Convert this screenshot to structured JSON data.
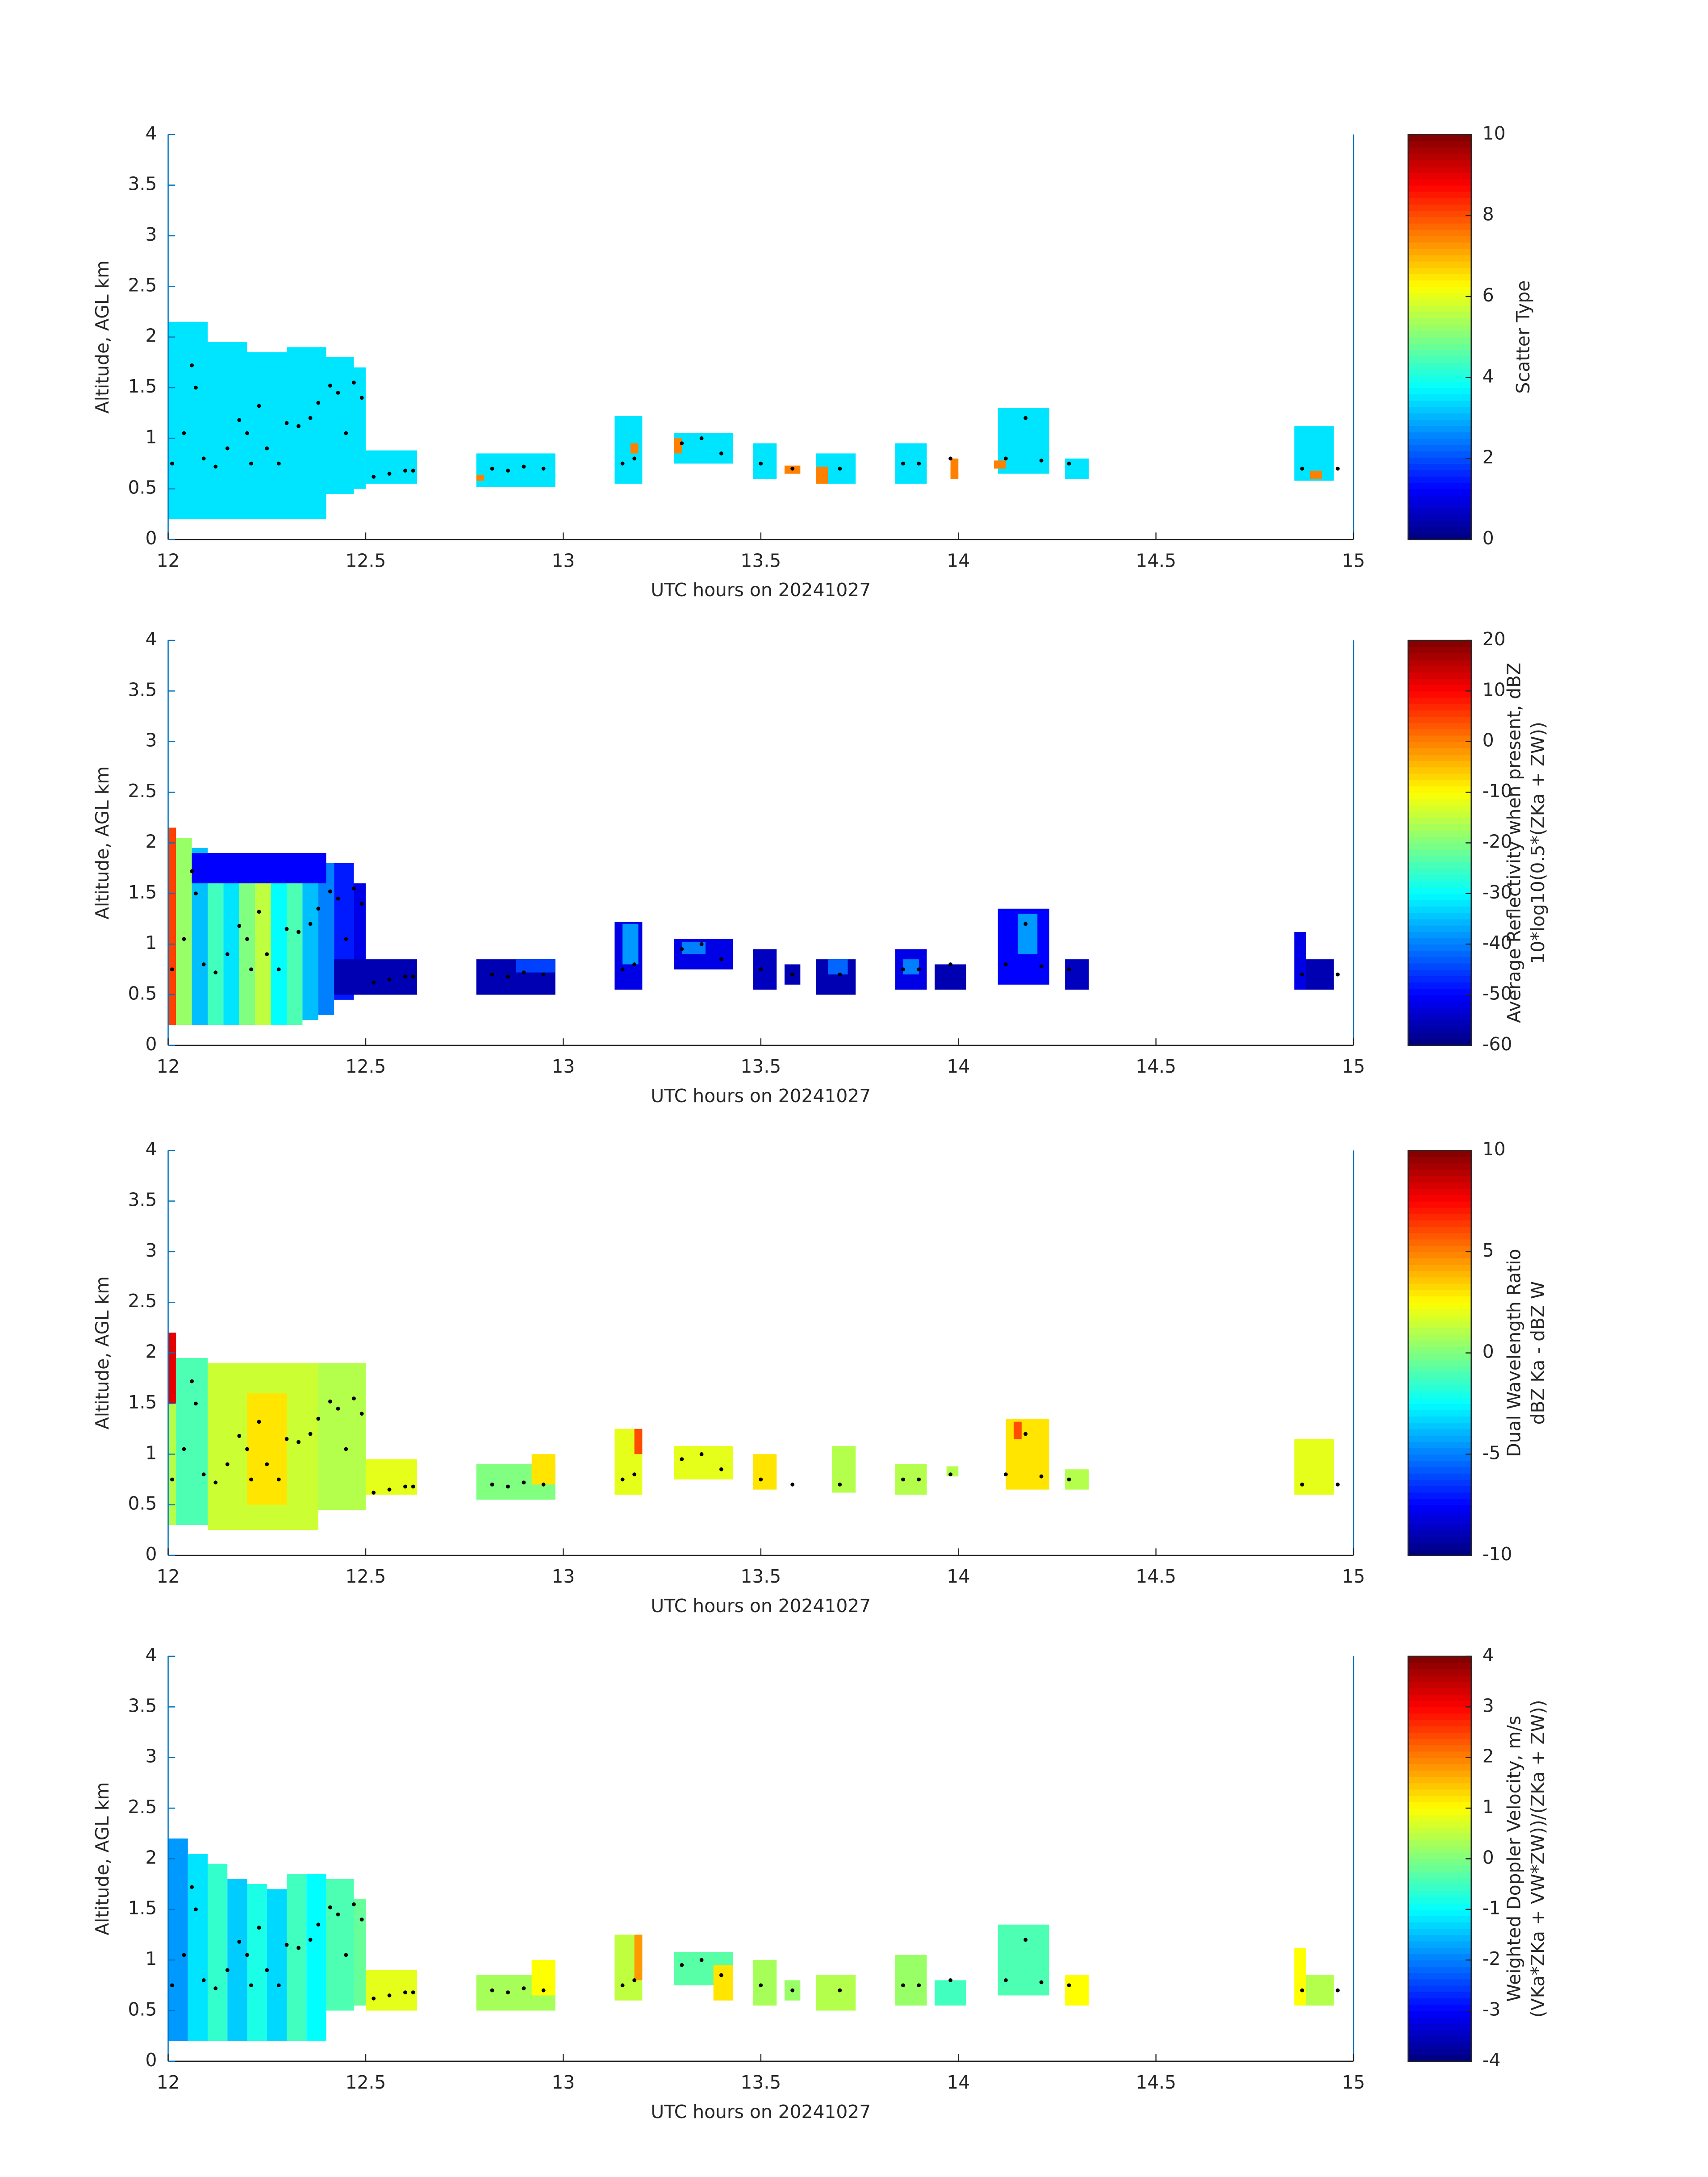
{
  "chart_data": [
    {
      "type": "heatmap",
      "xlabel": "UTC hours on 20241027",
      "ylabel": "Altitude, AGL km",
      "colorbar_label": [
        "Scatter Type"
      ],
      "xlim": [
        12,
        15
      ],
      "xticks": [
        12,
        12.5,
        13,
        13.5,
        14,
        14.5,
        15
      ],
      "ylim": [
        0,
        4
      ],
      "yticks": [
        0,
        0.5,
        1,
        1.5,
        2,
        2.5,
        3,
        3.5,
        4
      ],
      "clim": [
        0,
        10
      ],
      "cticks": [
        0,
        2,
        4,
        6,
        8,
        10
      ],
      "colormap": "jet",
      "cells": [
        [
          12.0,
          12.1,
          0.2,
          2.15,
          3.5
        ],
        [
          12.1,
          12.2,
          0.2,
          1.95,
          3.5
        ],
        [
          12.2,
          12.3,
          0.2,
          1.85,
          3.5
        ],
        [
          12.3,
          12.4,
          0.2,
          1.9,
          3.5
        ],
        [
          12.4,
          12.47,
          0.45,
          1.8,
          3.5
        ],
        [
          12.47,
          12.5,
          0.5,
          1.7,
          3.5
        ],
        [
          12.5,
          12.63,
          0.55,
          0.88,
          3.5
        ],
        [
          12.78,
          12.98,
          0.52,
          0.85,
          3.5
        ],
        [
          12.78,
          12.8,
          0.58,
          0.64,
          7.5
        ],
        [
          13.13,
          13.2,
          0.55,
          1.22,
          3.5
        ],
        [
          13.17,
          13.19,
          0.85,
          0.95,
          7.5
        ],
        [
          13.28,
          13.43,
          0.75,
          1.05,
          3.5
        ],
        [
          13.28,
          13.3,
          0.85,
          1.0,
          7.5
        ],
        [
          13.48,
          13.54,
          0.6,
          0.95,
          3.5
        ],
        [
          13.56,
          13.6,
          0.65,
          0.73,
          7.5
        ],
        [
          13.64,
          13.74,
          0.55,
          0.85,
          3.5
        ],
        [
          13.64,
          13.67,
          0.55,
          0.72,
          7.5
        ],
        [
          13.84,
          13.92,
          0.55,
          0.95,
          3.5
        ],
        [
          13.98,
          14.0,
          0.6,
          0.8,
          7.5
        ],
        [
          14.1,
          14.23,
          0.65,
          1.3,
          3.5
        ],
        [
          14.09,
          14.12,
          0.7,
          0.78,
          7.5
        ],
        [
          14.27,
          14.33,
          0.6,
          0.8,
          3.5
        ],
        [
          14.85,
          14.95,
          0.58,
          1.12,
          3.5
        ],
        [
          14.89,
          14.92,
          0.6,
          0.68,
          7.5
        ]
      ],
      "points": {
        "x": [
          12.01,
          12.04,
          12.06,
          12.07,
          12.09,
          12.12,
          12.15,
          12.18,
          12.2,
          12.21,
          12.23,
          12.25,
          12.28,
          12.3,
          12.33,
          12.36,
          12.38,
          12.41,
          12.43,
          12.45,
          12.47,
          12.49,
          12.52,
          12.56,
          12.6,
          12.62,
          12.82,
          12.86,
          12.9,
          12.95,
          13.15,
          13.18,
          13.3,
          13.35,
          13.4,
          13.5,
          13.58,
          13.7,
          13.86,
          13.9,
          13.98,
          14.12,
          14.17,
          14.21,
          14.28,
          14.87,
          14.96
        ],
        "y": [
          0.75,
          1.05,
          1.72,
          1.5,
          0.8,
          0.72,
          0.9,
          1.18,
          1.05,
          0.75,
          1.32,
          0.9,
          0.75,
          1.15,
          1.12,
          1.2,
          1.35,
          1.52,
          1.45,
          1.05,
          1.55,
          1.4,
          0.62,
          0.65,
          0.68,
          0.68,
          0.7,
          0.68,
          0.72,
          0.7,
          0.75,
          0.8,
          0.95,
          1.0,
          0.85,
          0.75,
          0.7,
          0.7,
          0.75,
          0.75,
          0.8,
          0.8,
          1.2,
          0.78,
          0.75,
          0.7,
          0.7
        ]
      }
    },
    {
      "type": "heatmap",
      "xlabel": "UTC hours on 20241027",
      "ylabel": "Altitude, AGL km",
      "colorbar_label": [
        "Average Reflectivity when present, dBZ",
        "10*log10(0.5*(ZKa + ZW))"
      ],
      "xlim": [
        12,
        15
      ],
      "xticks": [
        12,
        12.5,
        13,
        13.5,
        14,
        14.5,
        15
      ],
      "ylim": [
        0,
        4
      ],
      "yticks": [
        0,
        0.5,
        1,
        1.5,
        2,
        2.5,
        3,
        3.5,
        4
      ],
      "clim": [
        -60,
        20
      ],
      "cticks": [
        -60,
        -50,
        -40,
        -30,
        -20,
        -10,
        0,
        10,
        20
      ],
      "colormap": "jet",
      "cells": [
        [
          12.0,
          12.02,
          0.2,
          2.15,
          5
        ],
        [
          12.02,
          12.06,
          0.2,
          2.05,
          -18
        ],
        [
          12.06,
          12.1,
          0.2,
          1.95,
          -35
        ],
        [
          12.1,
          12.14,
          0.2,
          1.8,
          -25
        ],
        [
          12.14,
          12.18,
          0.2,
          1.7,
          -32
        ],
        [
          12.18,
          12.22,
          0.2,
          1.72,
          -20
        ],
        [
          12.22,
          12.26,
          0.2,
          1.68,
          -15
        ],
        [
          12.26,
          12.3,
          0.2,
          1.65,
          -30
        ],
        [
          12.3,
          12.34,
          0.2,
          1.75,
          -24
        ],
        [
          12.34,
          12.38,
          0.25,
          1.8,
          -35
        ],
        [
          12.38,
          12.42,
          0.3,
          1.8,
          -40
        ],
        [
          12.42,
          12.47,
          0.45,
          1.8,
          -48
        ],
        [
          12.47,
          12.5,
          0.5,
          1.6,
          -52
        ],
        [
          12.06,
          12.4,
          1.6,
          1.9,
          -50
        ],
        [
          12.42,
          12.63,
          0.5,
          0.85,
          -56
        ],
        [
          12.78,
          12.98,
          0.5,
          0.85,
          -56
        ],
        [
          12.88,
          12.98,
          0.72,
          0.85,
          -45
        ],
        [
          13.13,
          13.2,
          0.55,
          1.22,
          -52
        ],
        [
          13.15,
          13.19,
          0.8,
          1.2,
          -38
        ],
        [
          13.28,
          13.43,
          0.75,
          1.05,
          -52
        ],
        [
          13.3,
          13.36,
          0.9,
          1.02,
          -40
        ],
        [
          13.48,
          13.54,
          0.55,
          0.95,
          -55
        ],
        [
          13.56,
          13.6,
          0.6,
          0.8,
          -56
        ],
        [
          13.64,
          13.74,
          0.5,
          0.85,
          -56
        ],
        [
          13.67,
          13.72,
          0.7,
          0.85,
          -42
        ],
        [
          13.84,
          13.92,
          0.55,
          0.95,
          -52
        ],
        [
          13.86,
          13.9,
          0.7,
          0.85,
          -40
        ],
        [
          13.94,
          14.02,
          0.55,
          0.8,
          -56
        ],
        [
          14.1,
          14.23,
          0.6,
          1.35,
          -50
        ],
        [
          14.15,
          14.2,
          0.9,
          1.3,
          -38
        ],
        [
          14.27,
          14.33,
          0.55,
          0.85,
          -55
        ],
        [
          14.85,
          14.88,
          0.55,
          1.12,
          -52
        ],
        [
          14.88,
          14.95,
          0.55,
          0.85,
          -56
        ]
      ],
      "points": {
        "x": [
          12.01,
          12.04,
          12.06,
          12.07,
          12.09,
          12.12,
          12.15,
          12.18,
          12.2,
          12.21,
          12.23,
          12.25,
          12.28,
          12.3,
          12.33,
          12.36,
          12.38,
          12.41,
          12.43,
          12.45,
          12.47,
          12.49,
          12.52,
          12.56,
          12.6,
          12.62,
          12.82,
          12.86,
          12.9,
          12.95,
          13.15,
          13.18,
          13.3,
          13.35,
          13.4,
          13.5,
          13.58,
          13.7,
          13.86,
          13.9,
          13.98,
          14.12,
          14.17,
          14.21,
          14.28,
          14.87,
          14.96
        ],
        "y": [
          0.75,
          1.05,
          1.72,
          1.5,
          0.8,
          0.72,
          0.9,
          1.18,
          1.05,
          0.75,
          1.32,
          0.9,
          0.75,
          1.15,
          1.12,
          1.2,
          1.35,
          1.52,
          1.45,
          1.05,
          1.55,
          1.4,
          0.62,
          0.65,
          0.68,
          0.68,
          0.7,
          0.68,
          0.72,
          0.7,
          0.75,
          0.8,
          0.95,
          1.0,
          0.85,
          0.75,
          0.7,
          0.7,
          0.75,
          0.75,
          0.8,
          0.8,
          1.2,
          0.78,
          0.75,
          0.7,
          0.7
        ]
      }
    },
    {
      "type": "heatmap",
      "xlabel": "UTC hours on 20241027",
      "ylabel": "Altitude, AGL km",
      "colorbar_label": [
        "Dual Wavelength Ratio",
        "dBZ Ka - dBZ W"
      ],
      "xlim": [
        12,
        15
      ],
      "xticks": [
        12,
        12.5,
        13,
        13.5,
        14,
        14.5,
        15
      ],
      "ylim": [
        0,
        4
      ],
      "yticks": [
        0,
        0.5,
        1,
        1.5,
        2,
        2.5,
        3,
        3.5,
        4
      ],
      "clim": [
        -10,
        10
      ],
      "cticks": [
        -10,
        -5,
        0,
        5,
        10
      ],
      "colormap": "jet",
      "cells": [
        [
          12.0,
          12.02,
          1.5,
          2.2,
          8
        ],
        [
          12.0,
          12.02,
          0.3,
          1.5,
          1
        ],
        [
          12.02,
          12.1,
          0.3,
          1.95,
          -1
        ],
        [
          12.1,
          12.38,
          0.25,
          1.9,
          1.5
        ],
        [
          12.2,
          12.3,
          0.5,
          1.6,
          3
        ],
        [
          12.38,
          12.5,
          0.45,
          1.9,
          1
        ],
        [
          12.5,
          12.63,
          0.6,
          0.95,
          2
        ],
        [
          12.78,
          12.98,
          0.55,
          0.9,
          0
        ],
        [
          12.92,
          12.98,
          0.7,
          1.0,
          3
        ],
        [
          13.13,
          13.2,
          0.6,
          1.25,
          2
        ],
        [
          13.18,
          13.2,
          1.0,
          1.25,
          6
        ],
        [
          13.28,
          13.43,
          0.75,
          1.08,
          2
        ],
        [
          13.48,
          13.54,
          0.65,
          1.0,
          3
        ],
        [
          13.68,
          13.74,
          0.62,
          1.08,
          1
        ],
        [
          13.84,
          13.92,
          0.6,
          0.9,
          1
        ],
        [
          13.97,
          14.0,
          0.78,
          0.88,
          1
        ],
        [
          14.12,
          14.23,
          0.65,
          1.35,
          3
        ],
        [
          14.14,
          14.16,
          1.15,
          1.32,
          6
        ],
        [
          14.27,
          14.33,
          0.65,
          0.85,
          1
        ],
        [
          14.85,
          14.95,
          0.6,
          1.15,
          2
        ]
      ],
      "points": {
        "x": [
          12.01,
          12.04,
          12.06,
          12.07,
          12.09,
          12.12,
          12.15,
          12.18,
          12.2,
          12.21,
          12.23,
          12.25,
          12.28,
          12.3,
          12.33,
          12.36,
          12.38,
          12.41,
          12.43,
          12.45,
          12.47,
          12.49,
          12.52,
          12.56,
          12.6,
          12.62,
          12.82,
          12.86,
          12.9,
          12.95,
          13.15,
          13.18,
          13.3,
          13.35,
          13.4,
          13.5,
          13.58,
          13.7,
          13.86,
          13.9,
          13.98,
          14.12,
          14.17,
          14.21,
          14.28,
          14.87,
          14.96
        ],
        "y": [
          0.75,
          1.05,
          1.72,
          1.5,
          0.8,
          0.72,
          0.9,
          1.18,
          1.05,
          0.75,
          1.32,
          0.9,
          0.75,
          1.15,
          1.12,
          1.2,
          1.35,
          1.52,
          1.45,
          1.05,
          1.55,
          1.4,
          0.62,
          0.65,
          0.68,
          0.68,
          0.7,
          0.68,
          0.72,
          0.7,
          0.75,
          0.8,
          0.95,
          1.0,
          0.85,
          0.75,
          0.7,
          0.7,
          0.75,
          0.75,
          0.8,
          0.8,
          1.2,
          0.78,
          0.75,
          0.7,
          0.7
        ]
      }
    },
    {
      "type": "heatmap",
      "xlabel": "UTC hours on 20241027",
      "ylabel": "Altitude, AGL km",
      "colorbar_label": [
        "Weighted Doppler Velocity, m/s",
        "(VKa*ZKa + VW*ZW))/(ZKa + ZW))"
      ],
      "xlim": [
        12,
        15
      ],
      "xticks": [
        12,
        12.5,
        13,
        13.5,
        14,
        14.5,
        15
      ],
      "ylim": [
        0,
        4
      ],
      "yticks": [
        0,
        0.5,
        1,
        1.5,
        2,
        2.5,
        3,
        3.5,
        4
      ],
      "clim": [
        -4,
        4
      ],
      "cticks": [
        -4,
        -3,
        -2,
        -1,
        0,
        1,
        2,
        3,
        4
      ],
      "colormap": "jet",
      "cells": [
        [
          12.0,
          12.05,
          0.2,
          2.2,
          -1.8
        ],
        [
          12.05,
          12.1,
          0.2,
          2.05,
          -1.2
        ],
        [
          12.1,
          12.15,
          0.2,
          1.95,
          -0.6
        ],
        [
          12.15,
          12.2,
          0.2,
          1.8,
          -1.4
        ],
        [
          12.2,
          12.25,
          0.2,
          1.75,
          -0.8
        ],
        [
          12.25,
          12.3,
          0.2,
          1.7,
          -1.3
        ],
        [
          12.3,
          12.35,
          0.2,
          1.85,
          -0.5
        ],
        [
          12.35,
          12.4,
          0.2,
          1.85,
          -1.0
        ],
        [
          12.4,
          12.47,
          0.5,
          1.8,
          -0.4
        ],
        [
          12.47,
          12.5,
          0.55,
          1.6,
          -0.2
        ],
        [
          12.5,
          12.63,
          0.5,
          0.9,
          0.8
        ],
        [
          12.78,
          12.98,
          0.5,
          0.85,
          0.3
        ],
        [
          12.92,
          12.98,
          0.65,
          1.0,
          1.0
        ],
        [
          13.13,
          13.2,
          0.6,
          1.25,
          0.5
        ],
        [
          13.18,
          13.2,
          0.8,
          1.25,
          1.8
        ],
        [
          13.28,
          13.43,
          0.75,
          1.08,
          -0.3
        ],
        [
          13.38,
          13.43,
          0.6,
          0.95,
          1.2
        ],
        [
          13.48,
          13.54,
          0.55,
          1.0,
          0.3
        ],
        [
          13.56,
          13.6,
          0.6,
          0.8,
          0.2
        ],
        [
          13.64,
          13.74,
          0.5,
          0.85,
          0.4
        ],
        [
          13.84,
          13.92,
          0.55,
          1.05,
          0.2
        ],
        [
          13.94,
          14.02,
          0.55,
          0.8,
          -0.5
        ],
        [
          14.1,
          14.23,
          0.65,
          1.35,
          -0.4
        ],
        [
          14.27,
          14.33,
          0.55,
          0.85,
          1.0
        ],
        [
          14.85,
          14.88,
          0.55,
          1.12,
          1.0
        ],
        [
          14.88,
          14.95,
          0.55,
          0.85,
          0.4
        ]
      ],
      "points": {
        "x": [
          12.01,
          12.04,
          12.06,
          12.07,
          12.09,
          12.12,
          12.15,
          12.18,
          12.2,
          12.21,
          12.23,
          12.25,
          12.28,
          12.3,
          12.33,
          12.36,
          12.38,
          12.41,
          12.43,
          12.45,
          12.47,
          12.49,
          12.52,
          12.56,
          12.6,
          12.62,
          12.82,
          12.86,
          12.9,
          12.95,
          13.15,
          13.18,
          13.3,
          13.35,
          13.4,
          13.5,
          13.58,
          13.7,
          13.86,
          13.9,
          13.98,
          14.12,
          14.17,
          14.21,
          14.28,
          14.87,
          14.96
        ],
        "y": [
          0.75,
          1.05,
          1.72,
          1.5,
          0.8,
          0.72,
          0.9,
          1.18,
          1.05,
          0.75,
          1.32,
          0.9,
          0.75,
          1.15,
          1.12,
          1.2,
          1.35,
          1.52,
          1.45,
          1.05,
          1.55,
          1.4,
          0.62,
          0.65,
          0.68,
          0.68,
          0.7,
          0.68,
          0.72,
          0.7,
          0.75,
          0.8,
          0.95,
          1.0,
          0.85,
          0.75,
          0.7,
          0.7,
          0.75,
          0.75,
          0.8,
          0.8,
          1.2,
          0.78,
          0.75,
          0.7,
          0.7
        ]
      }
    }
  ]
}
